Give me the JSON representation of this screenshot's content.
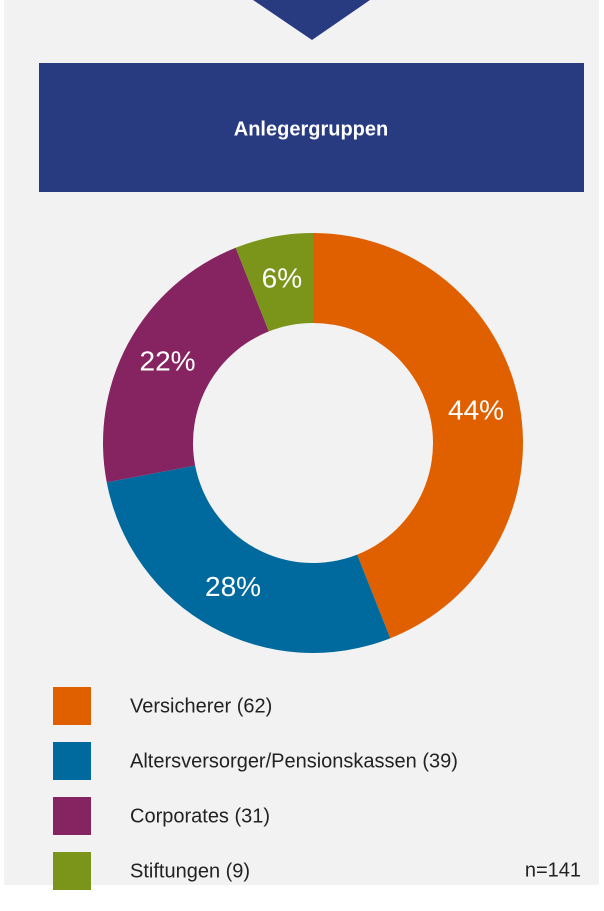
{
  "chart_data": {
    "type": "pie",
    "title": "Anlegergruppen",
    "categories": [
      "Versicherer (62)",
      "Altersversorger/Pensionskassen (39)",
      "Corporates (31)",
      "Stiftungen (9)"
    ],
    "values": [
      44,
      28,
      22,
      6
    ],
    "value_labels": [
      "44%",
      "28%",
      "22%",
      "6%"
    ],
    "colors": [
      "#e06000",
      "#006a9e",
      "#862462",
      "#7a9519"
    ],
    "note": "n=141"
  }
}
